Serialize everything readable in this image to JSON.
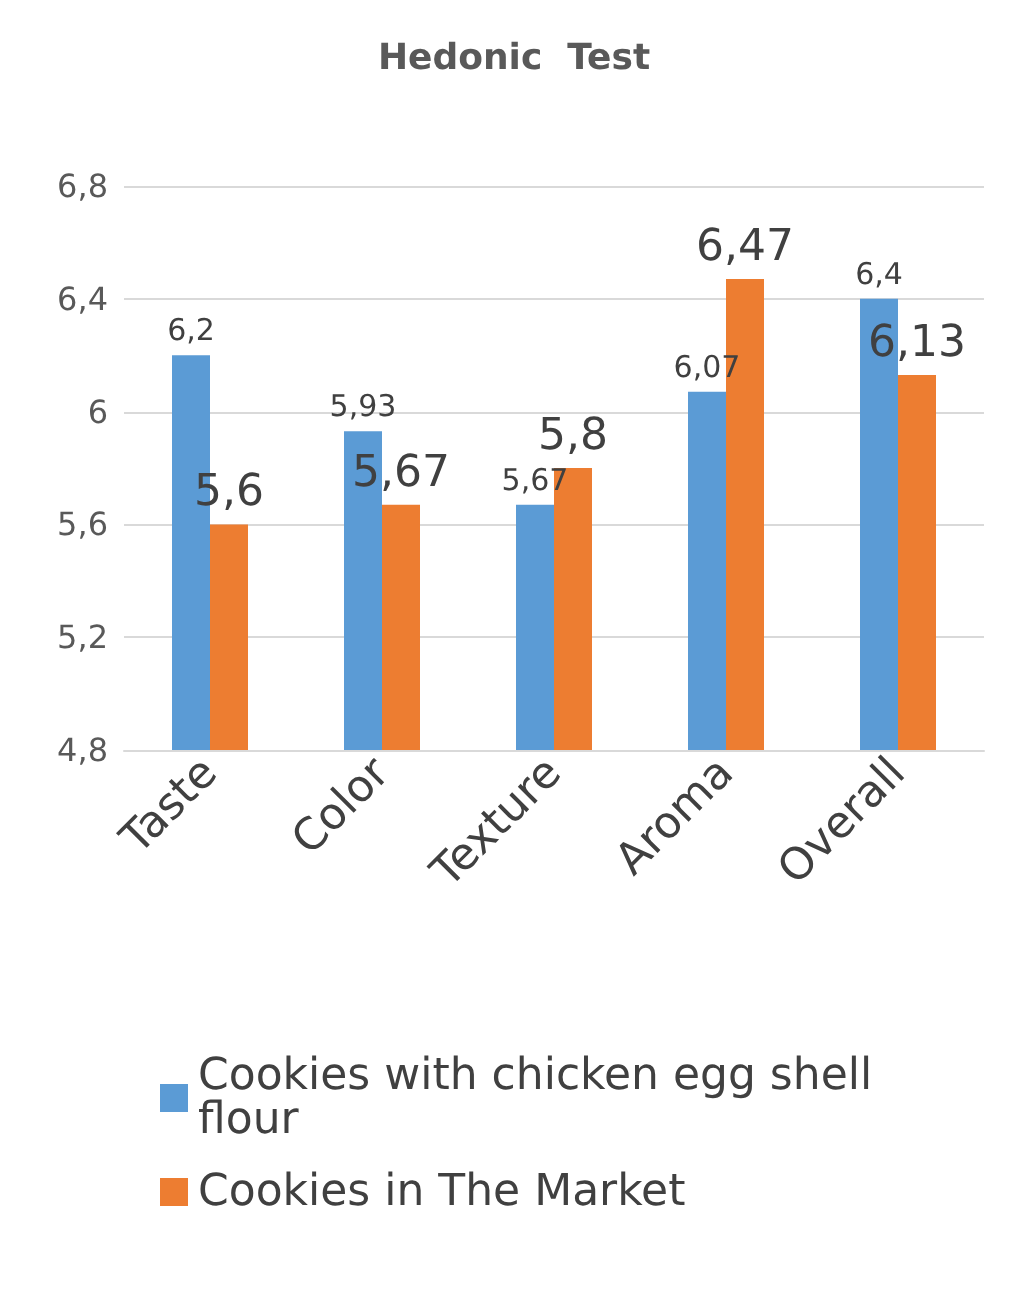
{
  "chart_data": {
    "type": "bar",
    "title": "Hedonic  Test",
    "categories": [
      "Taste",
      "Color",
      "Texture",
      "Aroma",
      "Overall"
    ],
    "series": [
      {
        "name": "Cookies with chicken egg shell flour",
        "color": "#5b9bd5",
        "values": [
          6.2,
          5.93,
          5.67,
          6.07,
          6.4
        ],
        "value_labels": [
          "6,2",
          "5,93",
          "5,67",
          "6,07",
          "6,4"
        ]
      },
      {
        "name": "Cookies in The Market",
        "color": "#ed7d31",
        "values": [
          5.6,
          5.67,
          5.8,
          6.47,
          6.13
        ],
        "value_labels": [
          "5,6",
          "5,67",
          "5,8",
          "6,47",
          "6,13"
        ]
      }
    ],
    "ylim": [
      4.8,
      6.8
    ],
    "yticks": [
      {
        "value": 4.8,
        "label": "4,8"
      },
      {
        "value": 5.2,
        "label": "5,2"
      },
      {
        "value": 5.6,
        "label": "5,6"
      },
      {
        "value": 6,
        "label": "6"
      },
      {
        "value": 6.4,
        "label": "6,4"
      },
      {
        "value": 6.8,
        "label": "6,8"
      }
    ],
    "grid": "y",
    "legend": "bottom"
  }
}
